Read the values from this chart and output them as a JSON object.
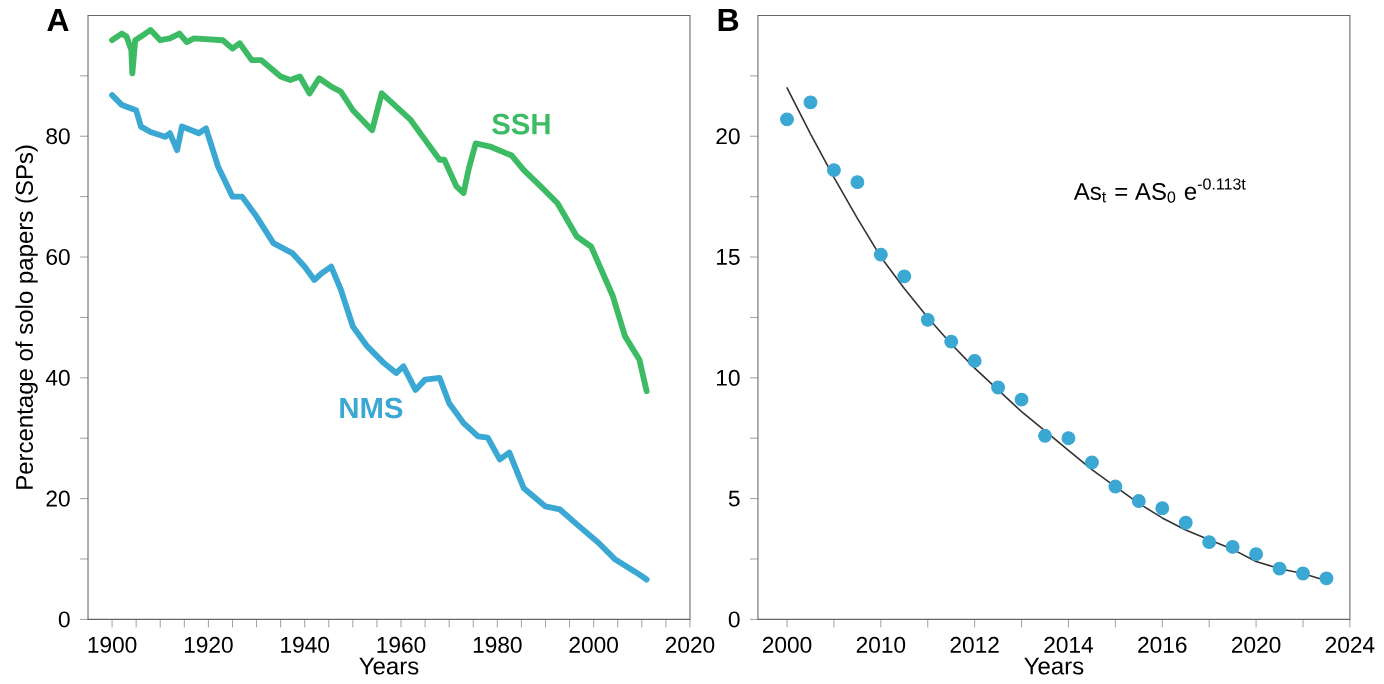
{
  "chart_data": [
    {
      "type": "line",
      "title": "A",
      "xlabel": "Years",
      "ylabel": "Percentage of solo papers (SPs)",
      "xlim": [
        1895,
        2020
      ],
      "ylim": [
        0,
        100
      ],
      "xticks": [
        1900,
        {
          "value": 1905,
          "label": null
        },
        {
          "value": 1910,
          "label": null
        },
        {
          "value": 1915,
          "label": null
        },
        1920,
        {
          "value": 1925,
          "label": null
        },
        {
          "value": 1930,
          "label": null
        },
        {
          "value": 1935,
          "label": null
        },
        1940,
        {
          "value": 1945,
          "label": null
        },
        {
          "value": 1950,
          "label": null
        },
        {
          "value": 1955,
          "label": null
        },
        1960,
        {
          "value": 1965,
          "label": null
        },
        {
          "value": 1970,
          "label": null
        },
        {
          "value": 1975,
          "label": null
        },
        1980,
        {
          "value": 1985,
          "label": null
        },
        {
          "value": 1990,
          "label": null
        },
        {
          "value": 1995,
          "label": null
        },
        2000,
        {
          "value": 2005,
          "label": null
        },
        {
          "value": 2010,
          "label": null
        },
        {
          "value": 2015,
          "label": null
        },
        2020
      ],
      "yticks": [
        0,
        {
          "value": 10,
          "label": null
        },
        20,
        {
          "value": 30,
          "label": null
        },
        40,
        {
          "value": 50,
          "label": null
        },
        60,
        {
          "value": 70,
          "label": null
        },
        80,
        {
          "value": 90,
          "label": null
        }
      ],
      "series": [
        {
          "name": "SSH",
          "color": "#3dbb64",
          "x": [
            1900,
            1902,
            1903,
            1904,
            1904.2,
            1904.8,
            1906,
            1908,
            1910,
            1912,
            1914,
            1915.5,
            1917,
            1923,
            1925,
            1926.5,
            1929,
            1931,
            1935,
            1937,
            1939,
            1941,
            1943,
            1945.5,
            1947.5,
            1950,
            1954,
            1956,
            1959,
            1962,
            1965,
            1968,
            1969,
            1971.5,
            1973,
            1974,
            1975.5,
            1978.5,
            1983,
            1985.5,
            1989,
            1992.5,
            1996.5,
            1999.5,
            2004,
            2006.5,
            2009.5,
            2011
          ],
          "values": [
            95.9,
            97,
            96.5,
            94.3,
            90.4,
            95.9,
            96.5,
            97.6,
            95.9,
            96.2,
            97,
            95.6,
            96.2,
            95.9,
            94.5,
            95.4,
            92.6,
            92.6,
            89.9,
            89.3,
            89.9,
            87.1,
            89.6,
            88.2,
            87.4,
            84.3,
            81,
            87.1,
            84.9,
            82.7,
            79.4,
            76.1,
            76.1,
            71.7,
            70.6,
            74.4,
            78.8,
            78.3,
            76.8,
            74.4,
            71.7,
            68.9,
            63.4,
            61.7,
            53.5,
            46.9,
            43,
            37.8
          ]
        },
        {
          "name": "NMS",
          "color": "#3ba7d3",
          "x": [
            1900,
            1902,
            1903,
            1905,
            1906,
            1908,
            1911,
            1912,
            1913.5,
            1914.5,
            1916.5,
            1918,
            1919.5,
            1922,
            1925,
            1927,
            1930,
            1933.5,
            1937.5,
            1940,
            1942,
            1943.5,
            1945.5,
            1947.5,
            1950,
            1953,
            1956.5,
            1959,
            1960.5,
            1963,
            1965,
            1968,
            1970,
            1973,
            1976,
            1978,
            1980.5,
            1982.5,
            1985.5,
            1990,
            1993,
            1997,
            2001,
            2004.5,
            2009,
            2011
          ],
          "values": [
            86.8,
            85.2,
            84.9,
            84.3,
            81.6,
            80.7,
            79.9,
            80.5,
            77.7,
            81.6,
            81,
            80.5,
            81.3,
            75,
            70,
            70,
            66.7,
            62.3,
            60.6,
            58.4,
            56.2,
            57.3,
            58.4,
            54.6,
            48.5,
            45.2,
            42.4,
            40.8,
            41.9,
            38,
            39.7,
            40,
            35.8,
            32.5,
            30.3,
            30.1,
            26.5,
            27.6,
            21.7,
            18.7,
            18.2,
            15.4,
            12.7,
            9.9,
            7.7,
            6.6
          ]
        }
      ]
    },
    {
      "type": "scatter",
      "title": "B",
      "xlabel": "Years",
      "categories": [
        "2000",
        null,
        null,
        null,
        "2010",
        null,
        null,
        null,
        "2012",
        null,
        null,
        null,
        "2014",
        null,
        null,
        null,
        "2016",
        null,
        null,
        null,
        "2020",
        null,
        null,
        null,
        "2024"
      ],
      "ylim": [
        0,
        25
      ],
      "yticks": [
        0,
        {
          "value": 2.5,
          "label": null
        },
        5,
        {
          "value": 7.5,
          "label": null
        },
        10,
        {
          "value": 12.5,
          "label": null
        },
        15,
        {
          "value": 17.5,
          "label": null
        },
        20,
        {
          "value": 22.5,
          "label": null
        }
      ],
      "annotations": [
        "As$_{t}$ = AS$_{0}$ e$^{-0.113t}$"
      ],
      "series": [
        {
          "color": "#3ba7d3",
          "marker": "circle",
          "values": [
            20.7,
            21.4,
            18.6,
            18.1,
            15.1,
            14.2,
            12.4,
            11.5,
            10.7,
            9.6,
            9.1,
            7.6,
            7.5,
            6.5,
            5.5,
            4.9,
            4.6,
            4.0,
            3.2,
            3.0,
            2.7,
            2.1,
            1.9,
            1.7,
            null
          ]
        },
        {
          "type": "line",
          "color": "#333333",
          "values": [
            22.0,
            20.1,
            18.3,
            16.6,
            15.0,
            13.7,
            12.5,
            11.4,
            10.4,
            9.5,
            8.6,
            7.8,
            7.0,
            6.2,
            5.5,
            4.8,
            4.2,
            3.7,
            3.3,
            2.9,
            2.4,
            2.1,
            1.9,
            1.6,
            null
          ]
        }
      ]
    }
  ]
}
